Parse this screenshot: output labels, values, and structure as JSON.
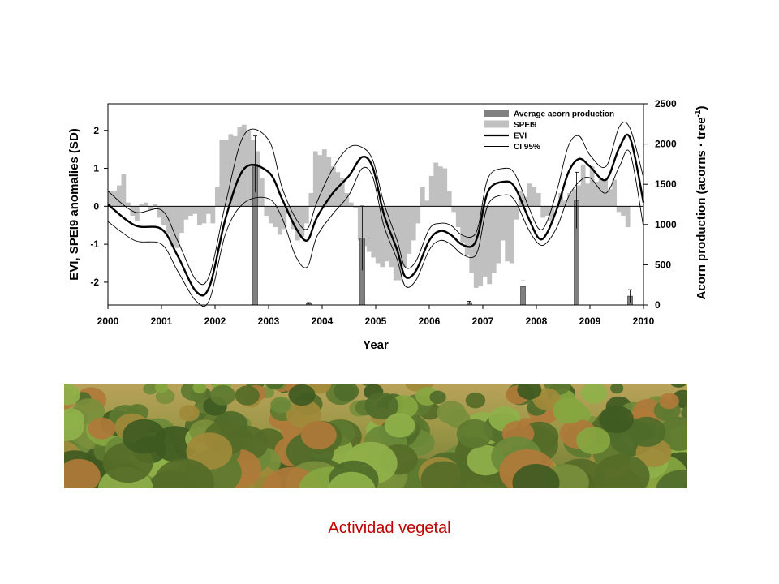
{
  "chart_data": {
    "type": "bar",
    "xlabel": "Year",
    "ylabel": "EVI, SPEI9 anomalies (SD)",
    "y2label": "Acorn production (acorns · tree",
    "y2label_sup": "-1",
    "y2label_close": ")",
    "xlim": [
      2000,
      2010
    ],
    "ylim": [
      -2.6,
      2.7
    ],
    "y2lim": [
      0,
      2500
    ],
    "xticks": [
      "2000",
      "2001",
      "2002",
      "2003",
      "2004",
      "2005",
      "2006",
      "2007",
      "2008",
      "2009",
      "2010"
    ],
    "yticks": [
      "-2",
      "-1",
      "0",
      "1",
      "2"
    ],
    "y2ticks": [
      "0",
      "500",
      "1000",
      "1500",
      "2000",
      "2500"
    ],
    "legend_position": "top-right",
    "legend": [
      "Average acorn production",
      "SPEI9",
      "EVI",
      "CI 95%"
    ],
    "series": [
      {
        "name": "Average acorn production",
        "x": [
          2002.75,
          2003.75,
          2004.75,
          2006.75,
          2007.75,
          2008.75,
          2009.75
        ],
        "values": [
          1750,
          20,
          830,
          30,
          230,
          1300,
          110
        ],
        "err": [
          350,
          10,
          400,
          15,
          70,
          350,
          80
        ],
        "color": "#808080"
      },
      {
        "name": "SPEI9",
        "start": 2000.0,
        "step": 0.0833,
        "values": [
          0.4,
          0.4,
          0.55,
          0.85,
          0.1,
          -0.25,
          -0.4,
          0.05,
          0.1,
          -0.1,
          0.05,
          -0.3,
          -0.5,
          -0.75,
          -1.05,
          -1.1,
          -0.7,
          -0.35,
          -0.25,
          -0.2,
          -0.5,
          -0.45,
          -0.2,
          -0.45,
          0.5,
          1.75,
          1.75,
          1.9,
          1.85,
          2.1,
          2.15,
          2.0,
          1.75,
          1.45,
          0.75,
          -0.25,
          -0.45,
          -0.55,
          -0.75,
          -0.6,
          -0.2,
          -0.6,
          -0.9,
          -0.8,
          -0.45,
          0.35,
          1.45,
          1.35,
          1.5,
          1.3,
          1.05,
          0.9,
          0.75,
          0.35,
          0.1,
          -0.05,
          -0.9,
          -1.05,
          -1.2,
          -1.35,
          -1.5,
          -1.6,
          -1.45,
          -1.6,
          -1.95,
          -1.95,
          -1.6,
          -1.25,
          -0.9,
          -0.45,
          0.5,
          0.15,
          0.8,
          1.15,
          1.05,
          1.0,
          0.4,
          -0.15,
          -0.55,
          -0.95,
          -1.3,
          -1.75,
          -2.15,
          -2.1,
          -1.85,
          -2.05,
          -1.75,
          -1.5,
          -0.9,
          -1.45,
          -1.5,
          -0.35,
          0.4,
          0.25,
          0.6,
          0.5,
          0.35,
          -0.3,
          -0.25,
          -0.4,
          -0.05,
          0.35,
          0.15,
          0.35,
          0.45,
          0.55,
          1.1,
          0.6,
          1.05,
          0.65,
          0.75,
          0.7,
          0.45,
          0.7,
          -0.15,
          -0.25,
          -0.55
        ],
        "color": "#c0c0c0"
      },
      {
        "name": "EVI",
        "x": [
          2000.0,
          2000.5,
          2001.0,
          2001.3,
          2001.65,
          2001.9,
          2002.2,
          2002.55,
          2003.0,
          2003.25,
          2003.5,
          2003.72,
          2003.9,
          2004.2,
          2004.5,
          2004.75,
          2004.95,
          2005.15,
          2005.4,
          2005.55,
          2005.75,
          2006.0,
          2006.2,
          2006.4,
          2006.6,
          2006.8,
          2006.92,
          2007.1,
          2007.4,
          2007.6,
          2007.85,
          2008.05,
          2008.2,
          2008.4,
          2008.6,
          2008.8,
          2009.0,
          2009.3,
          2009.55,
          2009.75,
          2010.0
        ],
        "values": [
          0.05,
          -0.5,
          -0.6,
          -1.3,
          -2.25,
          -2.1,
          -0.3,
          1.0,
          0.9,
          0.2,
          -0.55,
          -0.9,
          -0.3,
          0.35,
          0.8,
          1.3,
          1.0,
          -0.2,
          -1.15,
          -1.85,
          -1.7,
          -0.9,
          -0.65,
          -0.75,
          -1.0,
          -1.05,
          -0.7,
          0.4,
          0.65,
          0.5,
          -0.3,
          -0.85,
          -0.7,
          0.0,
          0.9,
          1.25,
          1.05,
          0.7,
          1.55,
          1.8,
          0.1
        ],
        "color": "#000000"
      },
      {
        "name": "CI 95%",
        "upper": [
          0.4,
          -0.15,
          -0.1,
          -0.9,
          -1.95,
          -1.8,
          0.1,
          1.9,
          1.75,
          0.5,
          -0.3,
          -0.6,
          0.1,
          1.0,
          1.55,
          1.55,
          1.2,
          0.1,
          -0.9,
          -1.6,
          -1.45,
          -0.6,
          -0.45,
          -0.5,
          -0.75,
          -0.8,
          -0.5,
          0.75,
          1.0,
          0.85,
          0.0,
          -0.6,
          -0.4,
          0.5,
          1.6,
          1.85,
          1.35,
          1.05,
          2.1,
          2.05,
          0.75
        ],
        "lower": [
          -0.4,
          -0.9,
          -1.0,
          -1.7,
          -2.5,
          -2.45,
          -0.7,
          0.1,
          0.2,
          -0.3,
          -1.3,
          -1.6,
          -0.8,
          -0.2,
          0.3,
          1.0,
          0.75,
          -0.5,
          -1.4,
          -2.1,
          -1.95,
          -1.15,
          -0.9,
          -1.0,
          -1.25,
          -1.35,
          -1.1,
          0.05,
          0.3,
          0.15,
          -0.6,
          -1.0,
          -0.95,
          -0.5,
          0.25,
          0.65,
          0.75,
          0.35,
          1.05,
          1.4,
          -0.55
        ],
        "color": "#000000"
      }
    ]
  },
  "caption": "Actividad vegetal"
}
